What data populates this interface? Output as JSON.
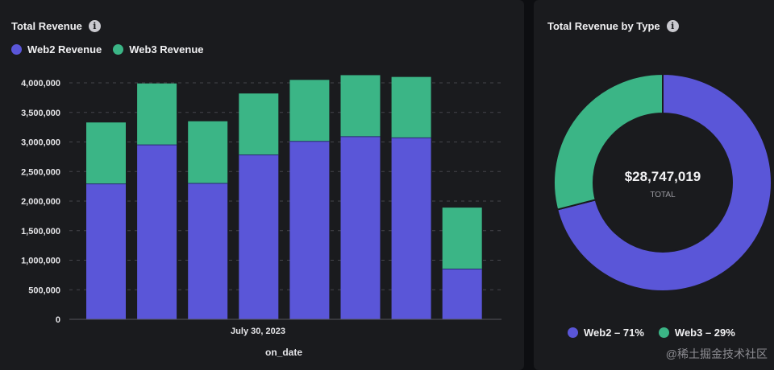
{
  "left": {
    "title": "Total Revenue",
    "legend": [
      {
        "label": "Web2 Revenue",
        "color": "#5a56d8"
      },
      {
        "label": "Web3 Revenue",
        "color": "#3bb586"
      }
    ]
  },
  "right": {
    "title": "Total Revenue by Type",
    "center_value": "$28,747,019",
    "center_label": "TOTAL",
    "legend": [
      {
        "label": "Web2 – 71%",
        "color": "#5a56d8"
      },
      {
        "label": "Web3 – 29%",
        "color": "#3bb586"
      }
    ]
  },
  "watermark": "@稀土掘金技术社区",
  "chart_data": [
    {
      "type": "bar",
      "stacked": true,
      "title": "Total Revenue",
      "xlabel": "on_date",
      "x_tick_label": "July 30, 2023",
      "ylim": [
        0,
        4000000
      ],
      "y_ticks": [
        0,
        500000,
        1000000,
        1500000,
        2000000,
        2500000,
        3000000,
        3500000,
        4000000
      ],
      "y_tick_labels": [
        "0",
        "500,000",
        "1,000,000",
        "1,500,000",
        "2,000,000",
        "2,500,000",
        "3,000,000",
        "3,500,000",
        "4,000,000"
      ],
      "grid": true,
      "legend_position": "top-left",
      "series": [
        {
          "name": "Web2 Revenue",
          "color": "#5a56d8",
          "values": [
            2290000,
            2950000,
            2300000,
            2780000,
            3010000,
            3090000,
            3070000,
            850000
          ]
        },
        {
          "name": "Web3 Revenue",
          "color": "#3bb586",
          "values": [
            1040000,
            1040000,
            1050000,
            1040000,
            1040000,
            1040000,
            1030000,
            1040000
          ]
        }
      ]
    },
    {
      "type": "pie",
      "donut": true,
      "title": "Total Revenue by Type",
      "total": 28747019,
      "legend_position": "bottom",
      "slices": [
        {
          "label": "Web2",
          "percent": 71,
          "color": "#5a56d8"
        },
        {
          "label": "Web3",
          "percent": 29,
          "color": "#3bb586"
        }
      ]
    }
  ]
}
